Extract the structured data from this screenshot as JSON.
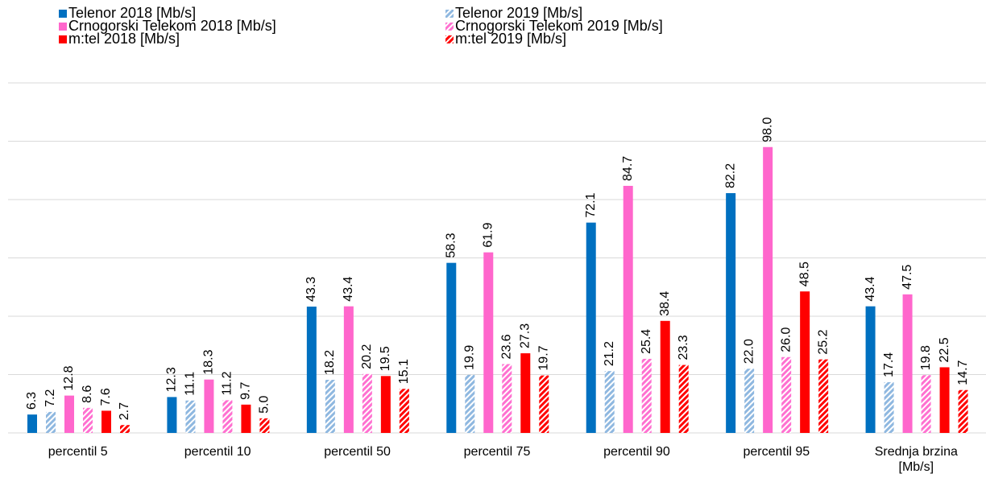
{
  "chart_data": {
    "type": "bar",
    "categories": [
      "percentil 5",
      "percentil 10",
      "percentil 50",
      "percentil 75",
      "percentil 90",
      "percentil 95",
      "Srednja brzina [Mb/s]"
    ],
    "series": [
      {
        "name": "Telenor 2018 [Mb/s]",
        "color": "#0070c0",
        "hatch": false,
        "values": [
          6.3,
          12.3,
          43.3,
          58.3,
          72.1,
          82.2,
          43.4
        ],
        "value_labels": [
          "6.3",
          "12.3",
          "43.3",
          "58.3",
          "72.1",
          "82.2",
          "43.4"
        ]
      },
      {
        "name": "Telenor 2019 [Mb/s]",
        "color": "#8fb8e0",
        "hatch": true,
        "values": [
          7.2,
          11.1,
          18.2,
          19.9,
          21.2,
          22.0,
          17.4
        ],
        "value_labels": [
          "7.2",
          "11.1",
          "18.2",
          "19.9",
          "21.2",
          "22.0",
          "17.4"
        ]
      },
      {
        "name": "Crnogorski Telekom 2018 [Mb/s]",
        "color": "#ff66cc",
        "hatch": false,
        "values": [
          12.8,
          18.3,
          43.4,
          61.9,
          84.7,
          98.0,
          47.5
        ],
        "value_labels": [
          "12.8",
          "18.3",
          "43.4",
          "61.9",
          "84.7",
          "98.0",
          "47.5"
        ]
      },
      {
        "name": "Crnogorski Telekom 2019 [Mb/s]",
        "color": "#ff70d0",
        "hatch": true,
        "values": [
          8.6,
          11.2,
          20.2,
          23.6,
          25.4,
          26.0,
          19.8
        ],
        "value_labels": [
          "8.6",
          "11.2",
          "20.2",
          "23.6",
          "25.4",
          "26.0",
          "19.8"
        ]
      },
      {
        "name": "m:tel 2018 [Mb/s]",
        "color": "#ff0000",
        "hatch": false,
        "values": [
          7.6,
          9.7,
          19.5,
          27.3,
          38.4,
          48.5,
          22.5
        ],
        "value_labels": [
          "7.6",
          "9.7",
          "19.5",
          "27.3",
          "38.4",
          "48.5",
          "22.5"
        ]
      },
      {
        "name": "m:tel 2019 [Mb/s]",
        "color": "#ff0000",
        "hatch": true,
        "values": [
          2.7,
          5.0,
          15.1,
          19.7,
          23.3,
          25.2,
          14.7
        ],
        "value_labels": [
          "2.7",
          "5.0",
          "15.1",
          "19.7",
          "23.3",
          "25.2",
          "14.7"
        ]
      }
    ],
    "ylim": [
      0,
      120
    ],
    "yticks": [
      0,
      20,
      40,
      60,
      80,
      100,
      120
    ],
    "grid": true,
    "legend": "top"
  }
}
